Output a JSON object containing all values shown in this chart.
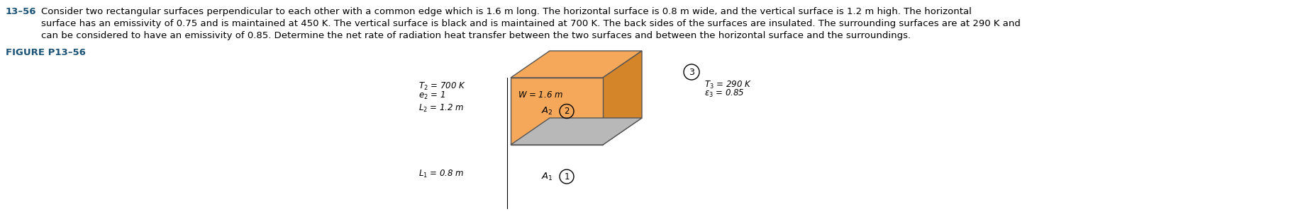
{
  "title_number": "13–56",
  "problem_lines": [
    "Consider two rectangular surfaces perpendicular to each other with a common edge which is 1.6 m long. The horizontal surface is 0.8 m wide, and the vertical surface is 1.2 m high. The horizontal",
    "surface has an emissivity of 0.75 and is maintained at 450 K. The vertical surface is black and is maintained at 700 K. The back sides of the surfaces are insulated. The surrounding surfaces are at 290 K and",
    "can be considered to have an emissivity of 0.85. Determine the net rate of radiation heat transfer between the two surfaces and between the horizontal surface and the surroundings."
  ],
  "figure_label": "FIGURE P13–56",
  "vertical_color": "#F5A85A",
  "vertical_side_color": "#D4852A",
  "horizontal_color": "#B8B8B8",
  "text_color_blue": "#1a5276",
  "body_fontsize": 9.5,
  "figure_label_fontsize": 9.5,
  "diag_fontsize": 8.5
}
